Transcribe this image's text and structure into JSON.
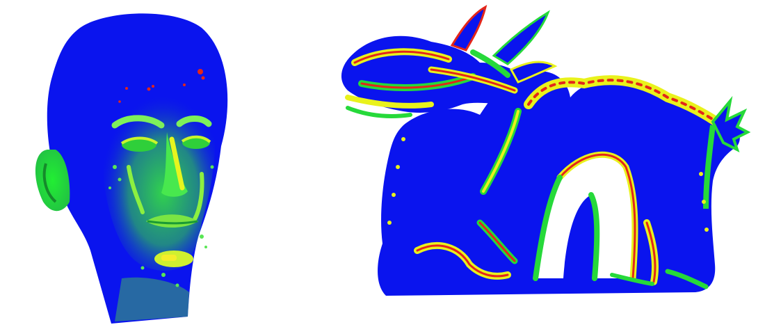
{
  "figure": {
    "background": "#ffffff",
    "colormap": {
      "low": "#0a14ee",
      "mid": "#26d93a",
      "mid_high": "#e9f21c",
      "high": "#e3261a"
    },
    "panels": [
      {
        "subject": "head-scan"
      },
      {
        "subject": "dragon-scan"
      }
    ]
  }
}
